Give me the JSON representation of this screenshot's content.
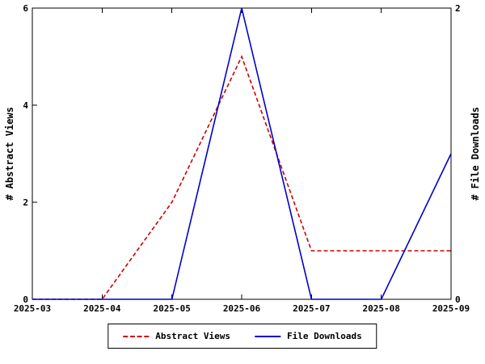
{
  "chart_data": {
    "type": "line",
    "title": "",
    "x_tick_labels": [
      "2025-03",
      "2025-04",
      "2025-05",
      "2025-06",
      "2025-07",
      "2025-08",
      "2025-09"
    ],
    "left_axis": {
      "label": "# Abstract Views",
      "range": [
        0,
        6
      ],
      "ticks": [
        0,
        2,
        4,
        6
      ]
    },
    "right_axis": {
      "label": "# File Downloads",
      "range": [
        0,
        2
      ],
      "ticks": [
        0,
        2
      ]
    },
    "series": [
      {
        "name": "Abstract Views",
        "axis": "left",
        "color": "#cc0000",
        "style": "dashed",
        "values": [
          0,
          0,
          2,
          5,
          1,
          1,
          1
        ]
      },
      {
        "name": "File Downloads",
        "axis": "right",
        "color": "#0000cc",
        "style": "solid",
        "values": [
          0,
          0,
          0,
          2,
          0,
          0,
          1
        ]
      }
    ],
    "legend_position": "bottom-center",
    "grid": false,
    "axis_color": "#000000",
    "background": "#ffffff"
  },
  "axis_labels": {
    "left": "# Abstract Views",
    "right": "# File Downloads"
  },
  "legend": {
    "items": [
      {
        "label": "Abstract Views"
      },
      {
        "label": "File Downloads"
      }
    ]
  }
}
